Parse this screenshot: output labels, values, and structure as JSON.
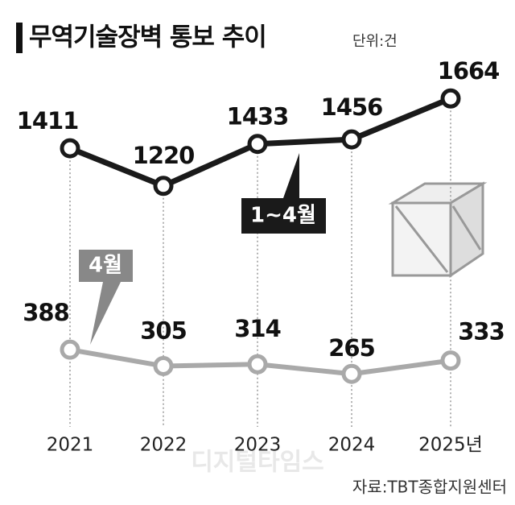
{
  "chart_data": {
    "type": "line",
    "title": "무역기술장벽 통보 추이",
    "unit": "단위:건",
    "source": "자료:TBT종합지원센터",
    "watermark": "디지털타임스",
    "categories": [
      "2021",
      "2022",
      "2023",
      "2024",
      "2025년"
    ],
    "series": [
      {
        "name": "1~4월",
        "color": "#1a1a1a",
        "values": [
          1411,
          1220,
          1433,
          1456,
          1664
        ]
      },
      {
        "name": "4월",
        "color": "#a9a9a9",
        "values": [
          388,
          305,
          314,
          265,
          333
        ]
      }
    ],
    "ylim": [
      0,
      1800
    ]
  }
}
